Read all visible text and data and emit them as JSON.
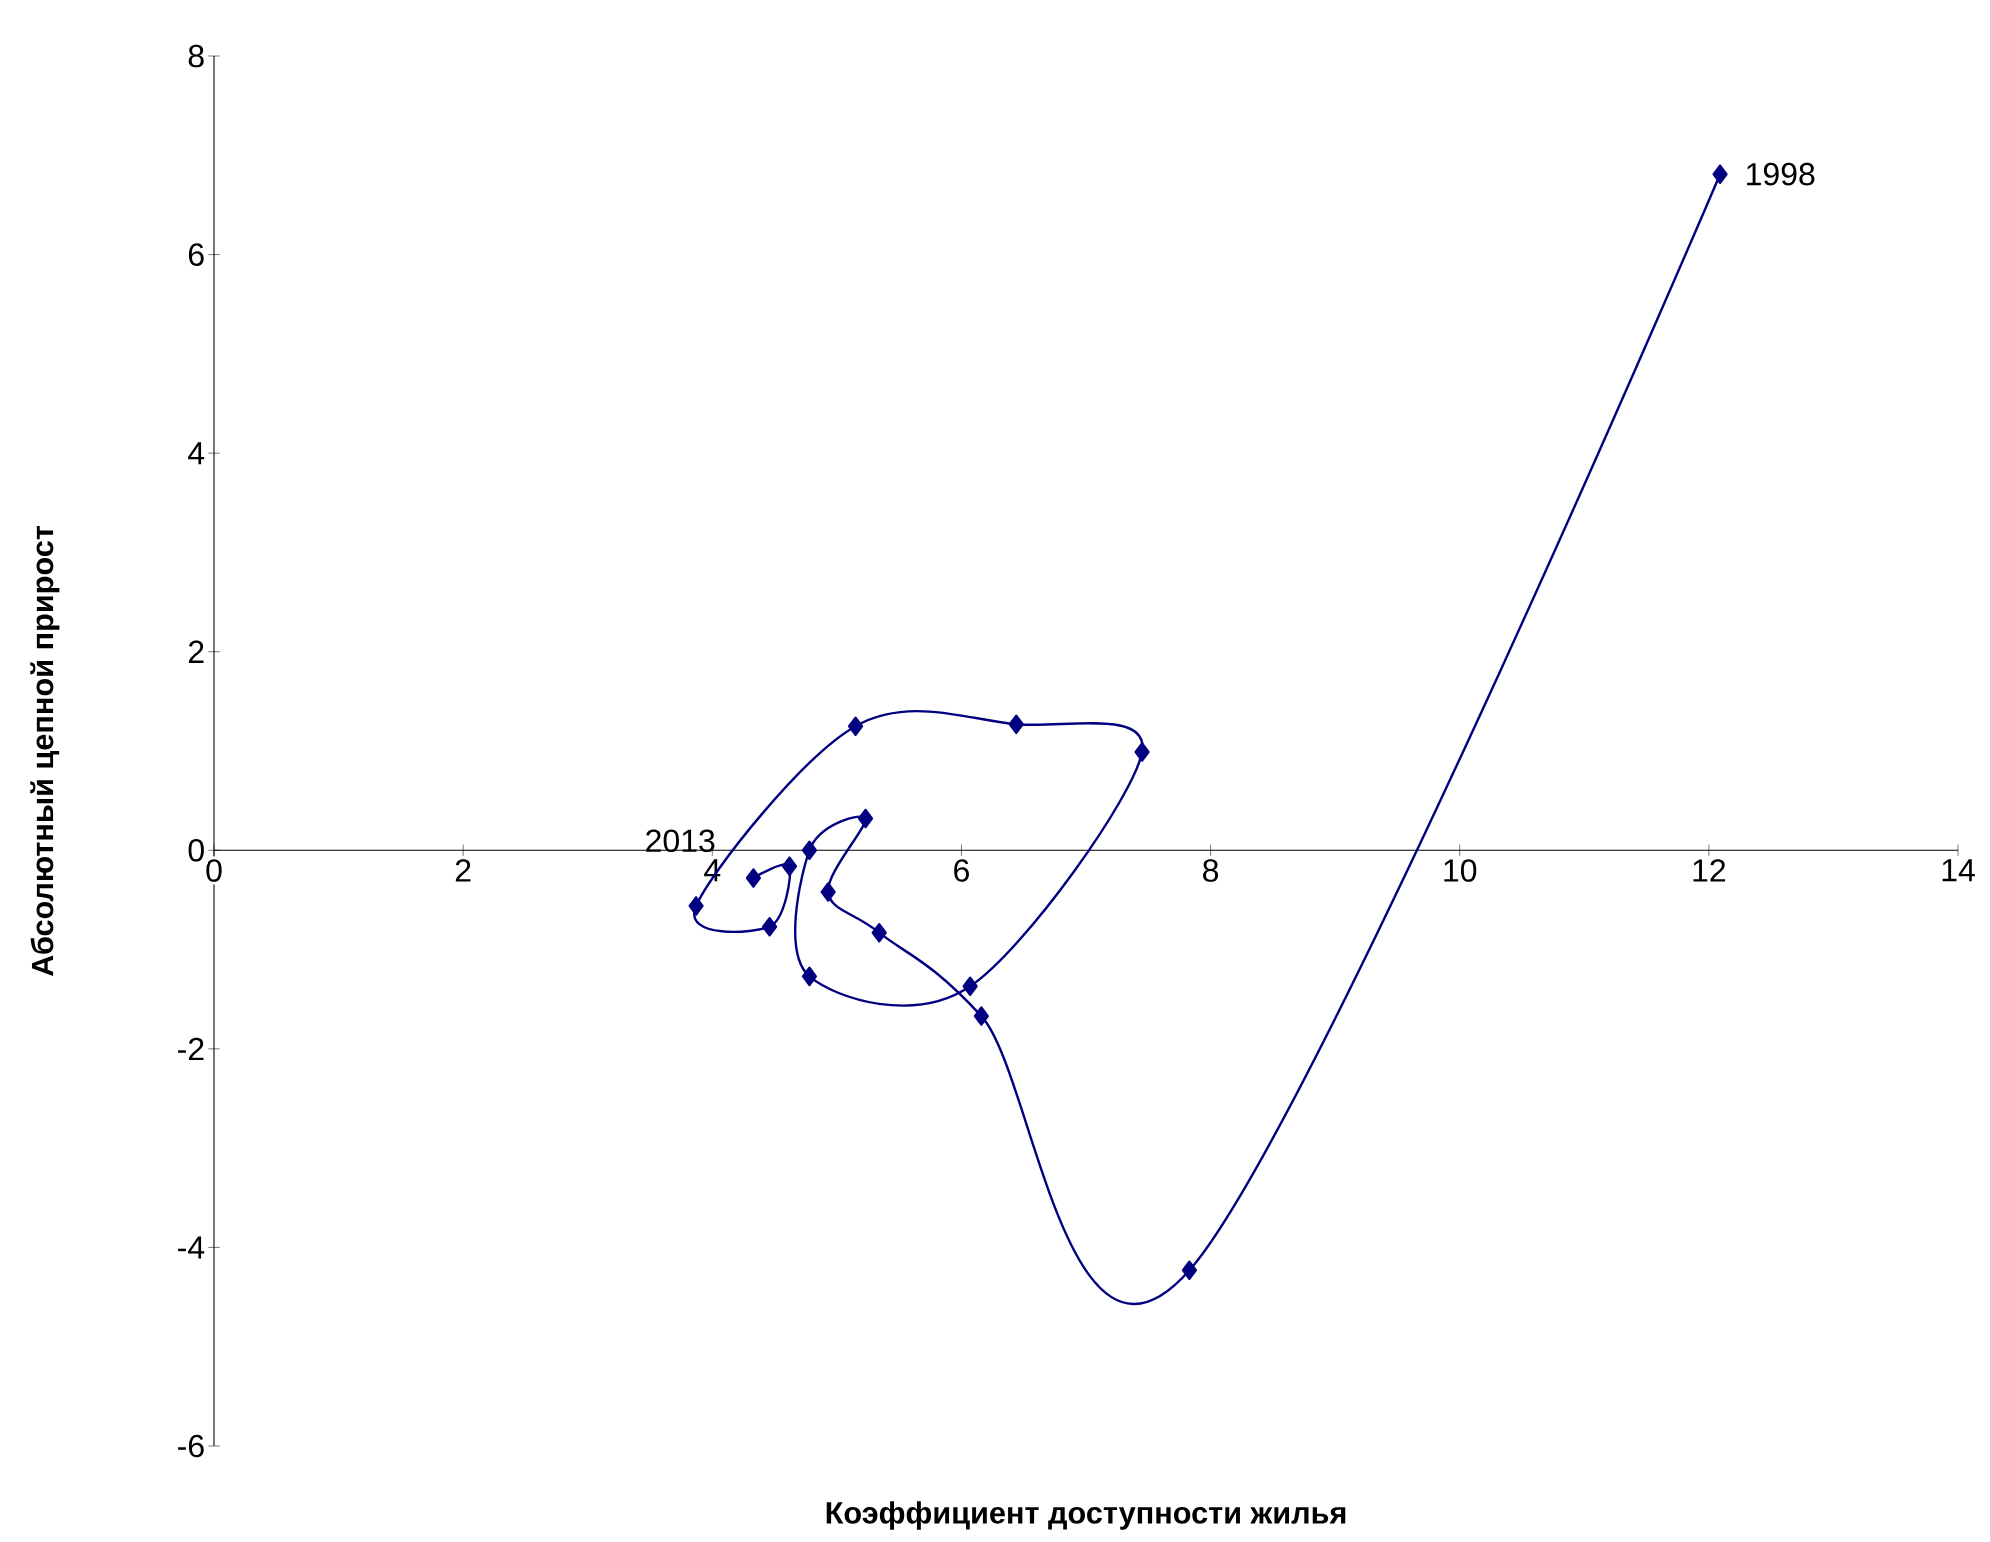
{
  "chart_data": {
    "type": "line",
    "xlabel": "Коэффициент доступности жилья",
    "ylabel": "Абсолютный цепной прирост",
    "x": [
      12.09,
      7.83,
      6.16,
      5.34,
      4.93,
      5.23,
      4.78,
      4.78,
      6.07,
      7.45,
      6.44,
      5.15,
      3.87,
      4.46,
      4.62,
      4.33
    ],
    "series": [
      {
        "color": "#000080",
        "values": [
          6.81,
          -4.23,
          -1.67,
          -0.83,
          -0.42,
          0.32,
          0.0,
          -1.27,
          -1.37,
          0.99,
          1.27,
          1.25,
          -0.56,
          -0.77,
          -0.16,
          -0.28
        ]
      }
    ],
    "marker": "diamond",
    "line_style": "solid",
    "xlim": [
      0,
      14
    ],
    "ylim": [
      -6,
      8
    ],
    "xticks": [
      0,
      2,
      4,
      6,
      8,
      10,
      12,
      14
    ],
    "yticks": [
      -6,
      -4,
      -2,
      0,
      2,
      4,
      6,
      8
    ],
    "annotations": [
      {
        "text": "1998",
        "x": 12.09,
        "y": 6.81
      },
      {
        "text": "2013",
        "x": 4.33,
        "y": -0.28
      }
    ]
  }
}
